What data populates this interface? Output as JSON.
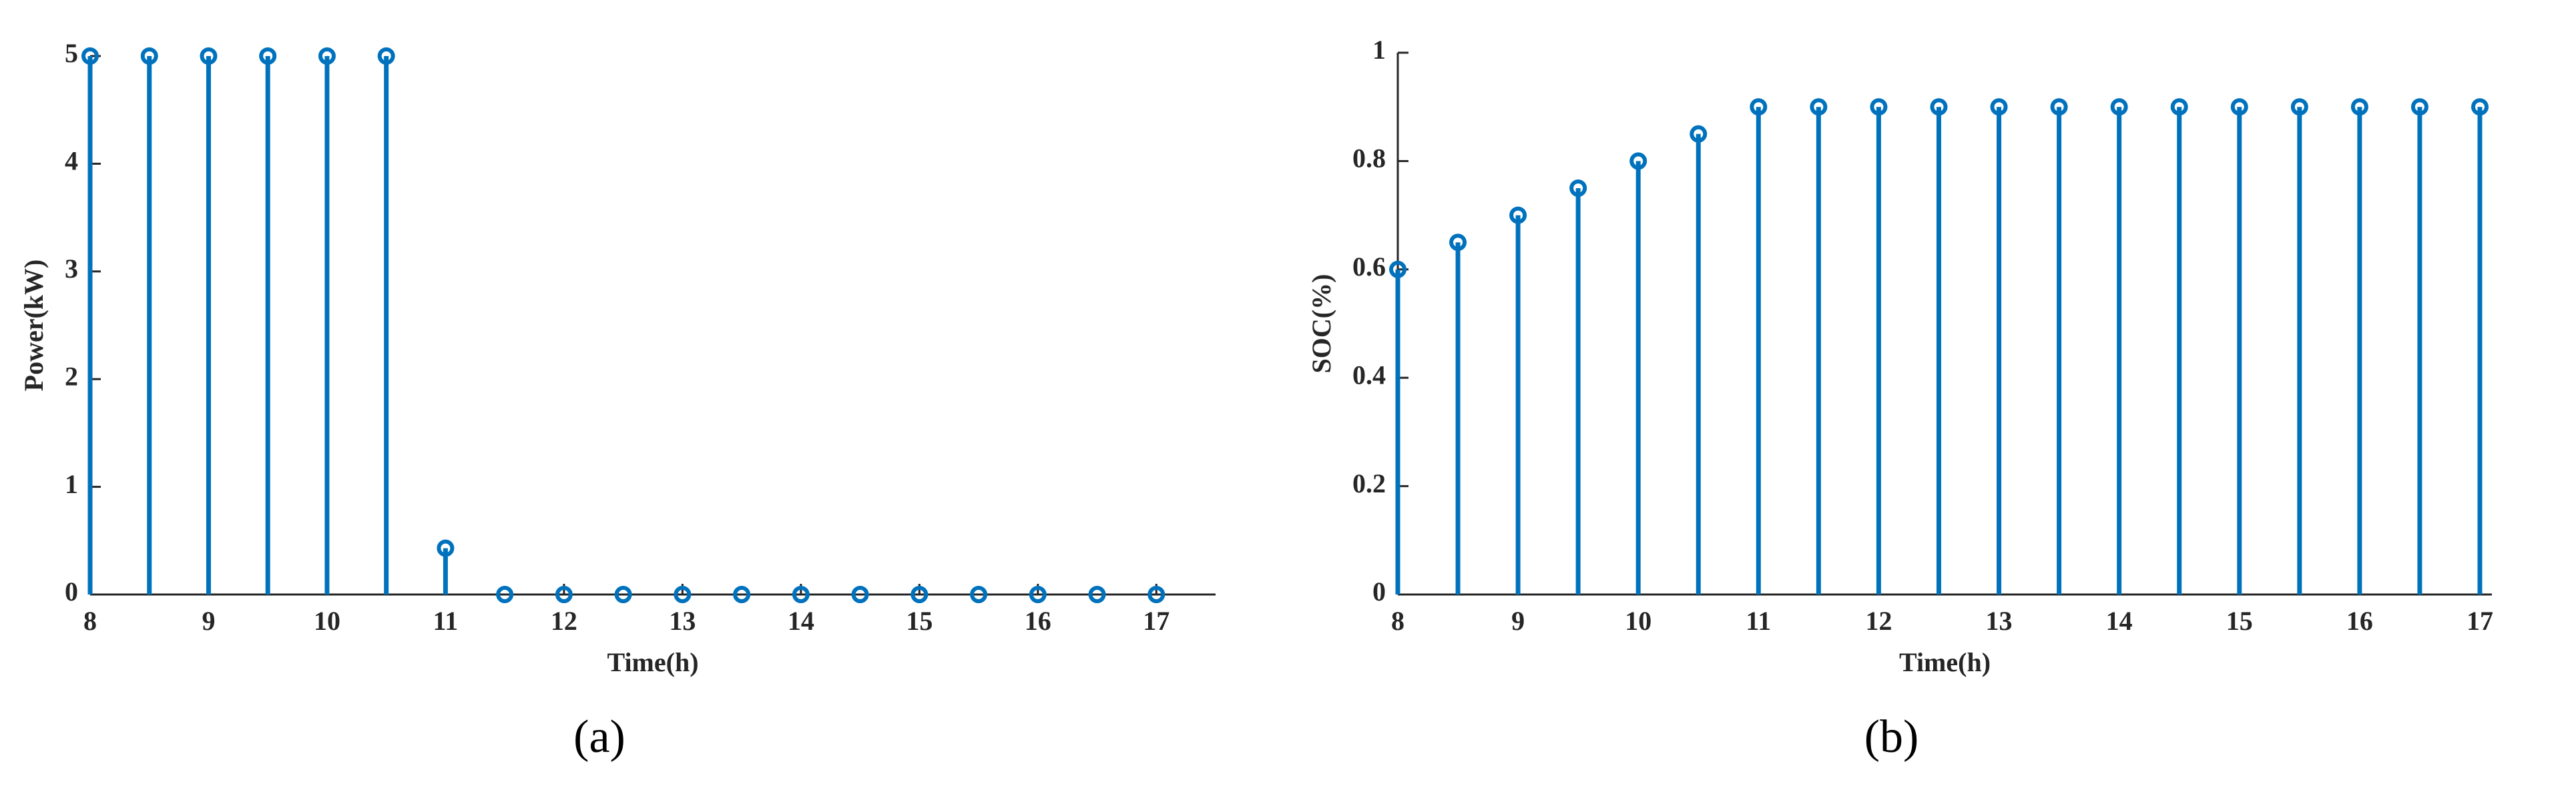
{
  "chart_data": [
    {
      "type": "stem",
      "xlabel": "Time(h)",
      "ylabel": "Power(kW)",
      "caption": "(a)",
      "x": [
        8,
        8.5,
        9,
        9.5,
        10,
        10.5,
        11,
        11.5,
        12,
        12.5,
        13,
        13.5,
        14,
        14.5,
        15,
        15.5,
        16,
        16.5,
        17
      ],
      "series": [
        {
          "name": "Power",
          "color": "#0072bd",
          "values": [
            5,
            5,
            5,
            5,
            5,
            5,
            0.43,
            0,
            0,
            0,
            0,
            0,
            0,
            0,
            0,
            0,
            0,
            0,
            0
          ]
        }
      ],
      "xlim": [
        8,
        17.5
      ],
      "xticks": [
        8,
        9,
        10,
        11,
        12,
        13,
        14,
        15,
        16,
        17
      ],
      "ylim": [
        0,
        5
      ],
      "yticks": [
        0,
        1,
        2,
        3,
        4,
        5
      ]
    },
    {
      "type": "stem",
      "xlabel": "Time(h)",
      "ylabel": "SOC(%)",
      "caption": "(b)",
      "x": [
        8,
        8.5,
        9,
        9.5,
        10,
        10.5,
        11,
        11.5,
        12,
        12.5,
        13,
        13.5,
        14,
        14.5,
        15,
        15.5,
        16,
        16.5,
        17
      ],
      "series": [
        {
          "name": "SOC",
          "color": "#0072bd",
          "values": [
            0.6,
            0.65,
            0.7,
            0.75,
            0.8,
            0.85,
            0.9,
            0.9,
            0.9,
            0.9,
            0.9,
            0.9,
            0.9,
            0.9,
            0.9,
            0.9,
            0.9,
            0.9,
            0.9
          ]
        }
      ],
      "xlim": [
        8,
        17.1
      ],
      "xticks": [
        8,
        9,
        10,
        11,
        12,
        13,
        14,
        15,
        16,
        17
      ],
      "ylim": [
        0,
        1
      ],
      "yticks": [
        0,
        0.2,
        0.4,
        0.6,
        0.8,
        1
      ]
    }
  ]
}
